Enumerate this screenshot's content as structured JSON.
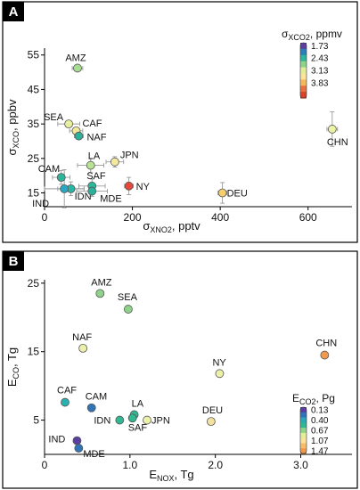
{
  "panel_labels": [
    "A",
    "B"
  ],
  "chart_data": [
    {
      "type": "scatter",
      "panel": "A",
      "xlabel": {
        "main": "σ",
        "sub": "XNO2",
        "tail": ", pptv"
      },
      "ylabel": {
        "main": "σ",
        "sub": "XCO",
        "tail": ", ppbv"
      },
      "xlim": [
        0,
        700
      ],
      "ylim": [
        11,
        57
      ],
      "xticks": [
        0,
        200,
        400,
        600
      ],
      "xtick_labels": [
        "0",
        "200",
        "400",
        "600"
      ],
      "yticks": [
        15,
        25,
        35,
        45,
        55
      ],
      "ytick_labels": [
        "15",
        "25",
        "35",
        "45",
        "55"
      ],
      "colorbar": {
        "title_main": "σ",
        "title_sub": "XCO2",
        "title_tail": ", ppmv",
        "colors": [
          "#5b3fa0",
          "#2a7fb8",
          "#2bb59a",
          "#8fd38a",
          "#e2ec9a",
          "#fbe49c",
          "#f5b85d",
          "#e9713f",
          "#d7432b"
        ],
        "tick_labels": [
          "1.73",
          "2.43",
          "3.13",
          "3.83"
        ],
        "tick_index": [
          0,
          2,
          4,
          6
        ]
      },
      "points": [
        {
          "label": "AMZ",
          "x": 75,
          "y": 51.2,
          "color": "#a8dc92",
          "xerr": 12,
          "yerr": 0.8
        },
        {
          "label": "SEA",
          "x": 55,
          "y": 35.0,
          "color": "#e6ef9d",
          "xerr": 25,
          "yerr": 1.0
        },
        {
          "label": "CAF",
          "x": 72,
          "y": 33.0,
          "color": "#f2e99c",
          "xerr": 15,
          "yerr": 1.0
        },
        {
          "label": "NAF",
          "x": 78,
          "y": 31.5,
          "color": "#2db09a",
          "xerr": 10,
          "yerr": 1.0
        },
        {
          "label": "CHN",
          "x": 655,
          "y": 33.5,
          "color": "#edf2a6",
          "xerr": 12,
          "yerr": 5.0
        },
        {
          "label": "LA",
          "x": 105,
          "y": 23.0,
          "color": "#b8e396",
          "xerr": 30,
          "yerr": 2.0
        },
        {
          "label": "JPN",
          "x": 160,
          "y": 24.0,
          "color": "#f4ea9e",
          "xerr": 20,
          "yerr": 1.5
        },
        {
          "label": "CAM",
          "x": 38,
          "y": 19.5,
          "color": "#2db59a",
          "xerr": 20,
          "yerr": 2.0
        },
        {
          "label": "SAF",
          "x": 108,
          "y": 17.0,
          "color": "#2eb79b",
          "xerr": 30,
          "yerr": 2.0
        },
        {
          "label": "IDN",
          "x": 60,
          "y": 16.2,
          "color": "#2bb5a3",
          "xerr": 30,
          "yerr": 2.0
        },
        {
          "label": "IND",
          "x": 45,
          "y": 16.2,
          "color": "#2aa7c2",
          "xerr": 45,
          "yerr": 5.5
        },
        {
          "label": "MDE",
          "x": 108,
          "y": 15.5,
          "color": "#2db09a",
          "xerr": 35,
          "yerr": 1.5
        },
        {
          "label": "NY",
          "x": 192,
          "y": 17.0,
          "color": "#e8473a",
          "xerr": 10,
          "yerr": 2.5
        },
        {
          "label": "DEU",
          "x": 405,
          "y": 15.0,
          "color": "#f6cf72",
          "xerr": 10,
          "yerr": 3.0
        }
      ]
    },
    {
      "type": "scatter",
      "panel": "B",
      "xlabel": {
        "main": "E",
        "sub": "NOX",
        "tail": ", Tg"
      },
      "ylabel": {
        "main": "E",
        "sub": "CO",
        "tail": ", Tg"
      },
      "xlim": [
        0,
        3.6
      ],
      "ylim": [
        0,
        25.5
      ],
      "xticks": [
        0,
        1,
        2,
        3
      ],
      "xtick_labels": [
        "0",
        "1.0",
        "2.0",
        "3.0"
      ],
      "yticks": [
        5,
        15,
        25
      ],
      "ytick_labels": [
        "5",
        "15",
        "25"
      ],
      "colorbar": {
        "title_main": "E",
        "title_sub": "CO2",
        "title_tail": ", Pg",
        "colors": [
          "#5b3fa0",
          "#2f74b8",
          "#2aa8b8",
          "#30b892",
          "#8fd38a",
          "#e2ec9a",
          "#fbe29c",
          "#f6be6a",
          "#ef9a4f"
        ],
        "tick_labels": [
          "0.13",
          "0.40",
          "0.67",
          "1.07",
          "1.47"
        ],
        "tick_index": [
          0,
          2,
          4,
          6,
          8
        ]
      },
      "points": [
        {
          "label": "AMZ",
          "x": 0.65,
          "y": 23.5,
          "color": "#8fd38a"
        },
        {
          "label": "SEA",
          "x": 0.98,
          "y": 21.2,
          "color": "#8fd38a"
        },
        {
          "label": "NAF",
          "x": 0.45,
          "y": 15.5,
          "color": "#edf0a8"
        },
        {
          "label": "CHN",
          "x": 3.28,
          "y": 14.5,
          "color": "#ef9a4f"
        },
        {
          "label": "NY",
          "x": 2.05,
          "y": 11.8,
          "color": "#edf0a8"
        },
        {
          "label": "CAF",
          "x": 0.24,
          "y": 7.6,
          "color": "#2ab0b0"
        },
        {
          "label": "CAM",
          "x": 0.55,
          "y": 6.8,
          "color": "#2f74b8"
        },
        {
          "label": "LA",
          "x": 1.05,
          "y": 5.8,
          "color": "#30b892"
        },
        {
          "label": "SAF",
          "x": 1.03,
          "y": 5.3,
          "color": "#30b892"
        },
        {
          "label": "IDN",
          "x": 0.88,
          "y": 5.0,
          "color": "#30b892"
        },
        {
          "label": "JPN",
          "x": 1.2,
          "y": 5.0,
          "color": "#edf0a8"
        },
        {
          "label": "DEU",
          "x": 1.95,
          "y": 4.8,
          "color": "#f4e3a0"
        },
        {
          "label": "IND",
          "x": 0.38,
          "y": 2.0,
          "color": "#5b3fa0"
        },
        {
          "label": "MDE",
          "x": 0.4,
          "y": 0.9,
          "color": "#2f74b8"
        }
      ]
    }
  ]
}
